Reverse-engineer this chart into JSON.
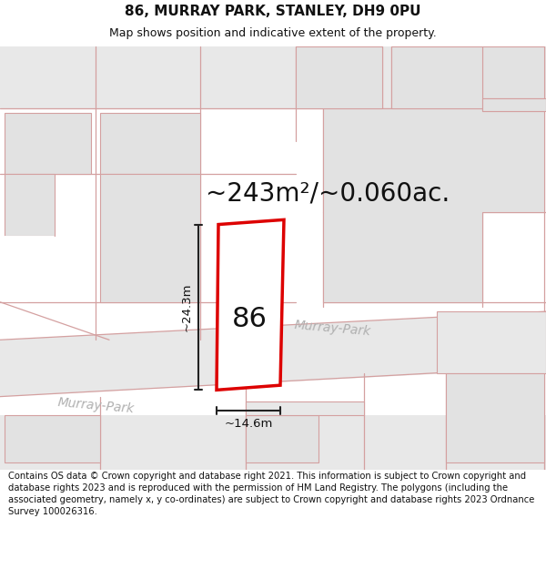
{
  "title": "86, MURRAY PARK, STANLEY, DH9 0PU",
  "subtitle": "Map shows position and indicative extent of the property.",
  "area_text": "~243m²/~0.060ac.",
  "label_86": "86",
  "dim_height": "~24.3m",
  "dim_width": "~14.6m",
  "street_label1": "Murray‑Park",
  "street_label2": "Murray‑Park",
  "copyright_text": "Contains OS data © Crown copyright and database right 2021. This information is subject to Crown copyright and database rights 2023 and is reproduced with the permission of HM Land Registry. The polygons (including the associated geometry, namely x, y co-ordinates) are subject to Crown copyright and database rights 2023 Ordnance Survey 100026316.",
  "bg_color": "#ffffff",
  "map_bg": "#ffffff",
  "road_fill": "#e8e8e8",
  "road_outline": "#d4a0a0",
  "bld_fill": "#e2e2e2",
  "bld_outline": "#c8a0a0",
  "plot_stroke": "#dd0000",
  "plot_fill": "#ffffff",
  "dim_color": "#222222",
  "street_color": "#b0b0b0",
  "title_fontsize": 11,
  "subtitle_fontsize": 9,
  "area_fontsize": 20,
  "label_fontsize": 22,
  "dim_fontsize": 9.5,
  "street_fontsize": 10,
  "copyright_fontsize": 7.2
}
